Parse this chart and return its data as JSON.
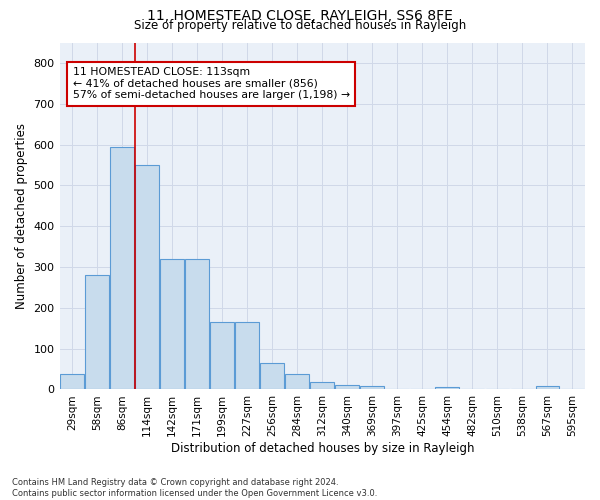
{
  "title1": "11, HOMESTEAD CLOSE, RAYLEIGH, SS6 8FE",
  "title2": "Size of property relative to detached houses in Rayleigh",
  "xlabel": "Distribution of detached houses by size in Rayleigh",
  "ylabel": "Number of detached properties",
  "bin_labels": [
    "29sqm",
    "58sqm",
    "86sqm",
    "114sqm",
    "142sqm",
    "171sqm",
    "199sqm",
    "227sqm",
    "256sqm",
    "284sqm",
    "312sqm",
    "340sqm",
    "369sqm",
    "397sqm",
    "425sqm",
    "454sqm",
    "482sqm",
    "510sqm",
    "538sqm",
    "567sqm",
    "595sqm"
  ],
  "bar_values": [
    38,
    280,
    595,
    550,
    320,
    320,
    165,
    165,
    65,
    38,
    18,
    10,
    8,
    0,
    0,
    5,
    0,
    0,
    0,
    8,
    0
  ],
  "bar_color": "#c8dced",
  "bar_edge_color": "#5b9bd5",
  "vline_color": "#cc0000",
  "annotation_text": "11 HOMESTEAD CLOSE: 113sqm\n← 41% of detached houses are smaller (856)\n57% of semi-detached houses are larger (1,198) →",
  "annotation_box_color": "#ffffff",
  "annotation_box_edge": "#cc0000",
  "ylim": [
    0,
    850
  ],
  "yticks": [
    0,
    100,
    200,
    300,
    400,
    500,
    600,
    700,
    800
  ],
  "grid_color": "#d0d8e8",
  "bg_color": "#eaf0f8",
  "footnote": "Contains HM Land Registry data © Crown copyright and database right 2024.\nContains public sector information licensed under the Open Government Licence v3.0."
}
